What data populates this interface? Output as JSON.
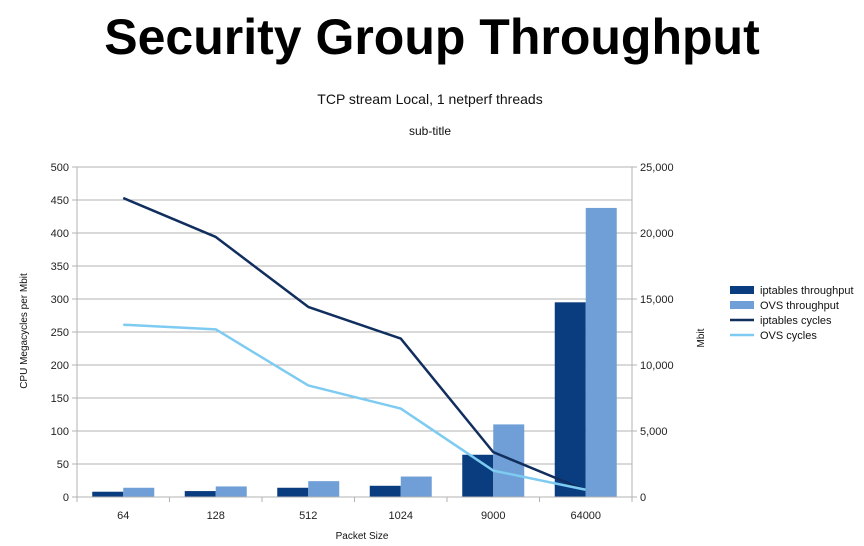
{
  "slide": {
    "title": "Security Group Throughput"
  },
  "chart_data": {
    "type": "bar+line",
    "title": "TCP stream Local, 1 netperf threads",
    "subtitle": "sub-title",
    "xlabel": "Packet Size",
    "ylabel_left": "CPU Megacycles per Mbit",
    "ylabel_right": "Mbit",
    "categories": [
      "64",
      "128",
      "512",
      "1024",
      "9000",
      "64000"
    ],
    "ylim_left": [
      0,
      500
    ],
    "yticks_left": [
      "0",
      "50",
      "100",
      "150",
      "200",
      "250",
      "300",
      "350",
      "400",
      "450",
      "500"
    ],
    "ylim_right": [
      0,
      25000
    ],
    "yticks_right": [
      "0",
      "5,000",
      "10,000",
      "15,000",
      "20,000",
      "25,000"
    ],
    "grid": true,
    "legend_position": "right",
    "bar_series": [
      {
        "name": "iptables throughput",
        "axis": "right",
        "color": "#0a3d80",
        "values": [
          400,
          450,
          700,
          850,
          3200,
          14750
        ]
      },
      {
        "name": "OVS throughput",
        "axis": "right",
        "color": "#6f9fd6",
        "values": [
          700,
          800,
          1200,
          1550,
          5500,
          21900
        ]
      }
    ],
    "line_series": [
      {
        "name": "iptables cycles",
        "axis": "left",
        "color": "#102e5e",
        "values": [
          453,
          394,
          288,
          240,
          68,
          10
        ]
      },
      {
        "name": "OVS cycles",
        "axis": "left",
        "color": "#7ecbf2",
        "values": [
          261,
          254,
          169,
          134,
          40,
          11
        ]
      }
    ]
  }
}
